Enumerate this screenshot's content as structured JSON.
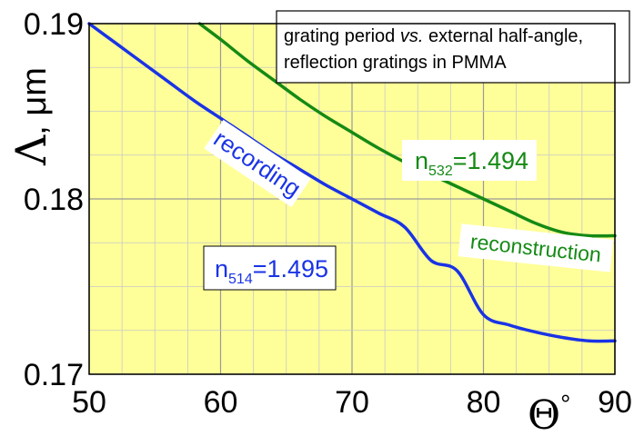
{
  "chart_data": {
    "type": "line",
    "title_lines": [
      "grating period vs. external half-angle,",
      "reflection gratings in PMMA"
    ],
    "title_italic_word": "vs.",
    "ylabel_symbol": "Λ",
    "ylabel_unit": ", μm",
    "xlabel_symbol": "Θ",
    "xlabel_degree": "°",
    "xlim": [
      50,
      90
    ],
    "ylim": [
      0.17,
      0.19
    ],
    "x_ticks": [
      "50",
      "60",
      "70",
      "80",
      "90"
    ],
    "y_ticks": [
      "0.17",
      "0.18",
      "0.19"
    ],
    "grid": true,
    "background_color": "#ffff99",
    "series": [
      {
        "name": "recording",
        "color": "#1a33e6",
        "x": [
          50,
          52,
          54,
          56,
          58,
          60,
          62,
          64,
          66,
          68,
          70,
          72,
          74,
          76,
          78,
          80,
          82,
          84,
          86,
          88,
          90
        ],
        "y": [
          0.19,
          0.1889,
          0.1878,
          0.1867,
          0.1856,
          0.1846,
          0.1836,
          0.1826,
          0.1817,
          0.1808,
          0.18,
          0.1792,
          0.1784,
          0.1765,
          0.1759,
          0.1734,
          0.1728,
          0.1724,
          0.1721,
          0.1719,
          0.1719
        ]
      },
      {
        "name": "reconstruction",
        "color": "#158a15",
        "x": [
          58.4,
          60,
          62,
          64,
          66,
          68,
          70,
          72,
          74,
          76,
          78,
          80,
          82,
          84,
          86,
          88,
          90
        ],
        "y": [
          0.19,
          0.1891,
          0.1879,
          0.1868,
          0.1857,
          0.1847,
          0.1838,
          0.1829,
          0.1821,
          0.1814,
          0.1807,
          0.18,
          0.1793,
          0.1786,
          0.1781,
          0.1779,
          0.1779
        ]
      }
    ],
    "annotations": {
      "recording_label": "recording",
      "reconstruction_label": "reconstruction",
      "n514_base": "n",
      "n514_sub": "514",
      "n514_value": "=1.495",
      "n532_base": "n",
      "n532_sub": "532",
      "n532_value": "=1.494"
    }
  }
}
